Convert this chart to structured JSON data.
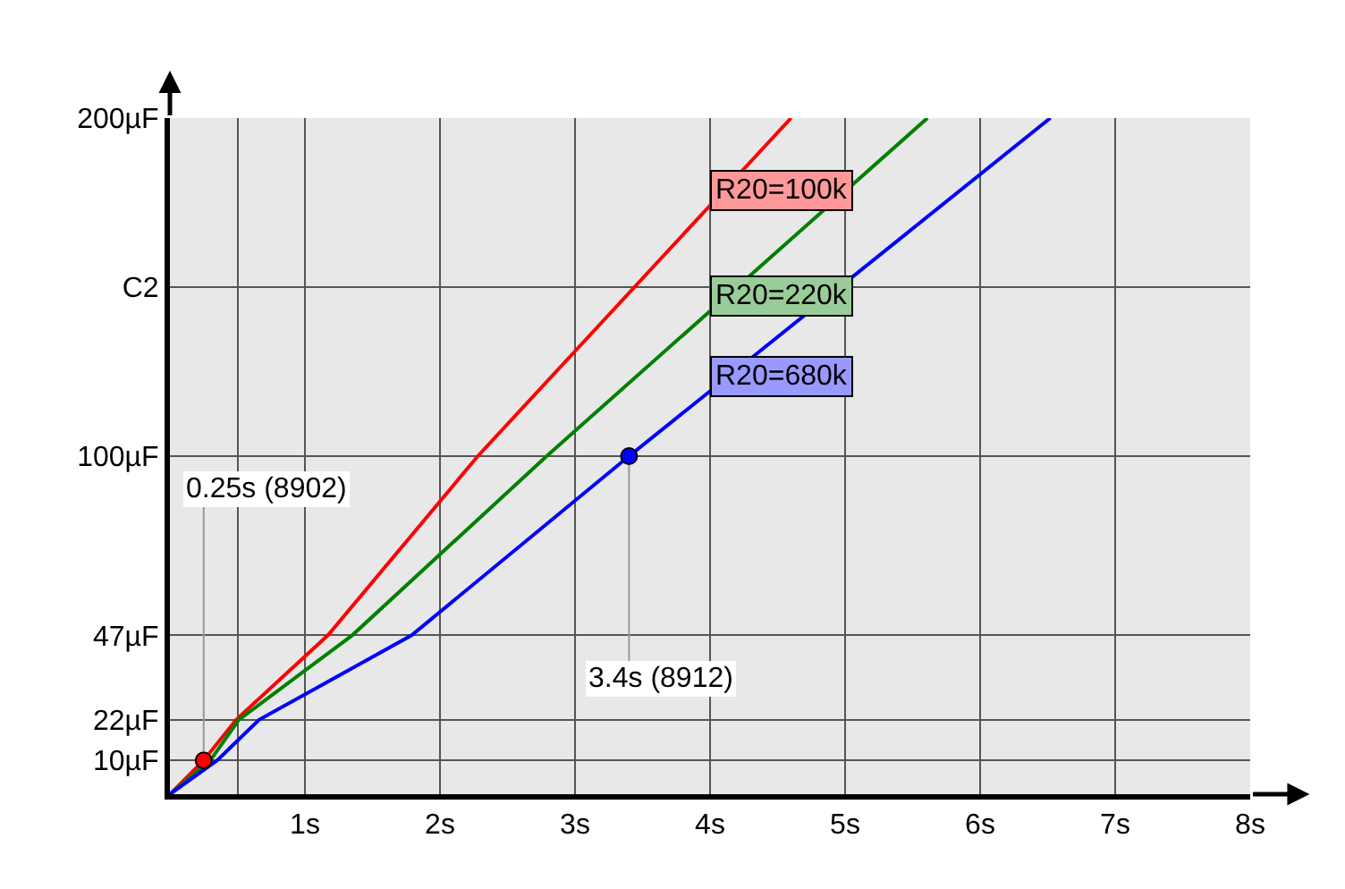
{
  "chart_data": {
    "type": "line",
    "xlim": [
      0,
      8
    ],
    "ylim": [
      0,
      200
    ],
    "xticks": [
      {
        "value": 0.5,
        "label": null
      },
      {
        "value": 1,
        "label": "1s"
      },
      {
        "value": 2,
        "label": "2s"
      },
      {
        "value": 3,
        "label": "3s"
      },
      {
        "value": 4,
        "label": "4s"
      },
      {
        "value": 5,
        "label": "5s"
      },
      {
        "value": 6,
        "label": "6s"
      },
      {
        "value": 7,
        "label": "7s"
      },
      {
        "value": 8,
        "label": "8s"
      }
    ],
    "yticks": [
      {
        "value": 10,
        "label": "10µF"
      },
      {
        "value": 22,
        "label": "22µF"
      },
      {
        "value": 47,
        "label": "47µF"
      },
      {
        "value": 100,
        "label": "100µF"
      },
      {
        "value": 150,
        "label": "C2"
      },
      {
        "value": 200,
        "label": "200µF"
      }
    ],
    "grid": true,
    "legend": false,
    "marker": "none",
    "line_style": "solid",
    "series": [
      {
        "name": "R20=100k",
        "color": "#ff0000",
        "x": [
          0,
          0.25,
          0.49,
          1.17,
          2.28,
          4.6
        ],
        "values": [
          0,
          10,
          22,
          47,
          100,
          200
        ]
      },
      {
        "name": "R20=220k",
        "color": "#008000",
        "x": [
          0,
          0.3,
          0.51,
          1.35,
          2.79,
          5.61
        ],
        "values": [
          0,
          10,
          22,
          47,
          100,
          200
        ]
      },
      {
        "name": "R20=680k",
        "color": "#0000ff",
        "x": [
          0,
          0.35,
          0.66,
          1.79,
          3.4,
          6.52
        ],
        "values": [
          0,
          10,
          22,
          47,
          100,
          200
        ]
      },
      {
        "type": "scatter",
        "marker": "circle",
        "colors": [
          "#ff0000",
          "#0000ff"
        ],
        "x": [
          0.25,
          3.4
        ],
        "values": [
          10,
          100
        ]
      }
    ],
    "annotations": [
      {
        "text": "0.25s (8902)",
        "x": 0.25,
        "y": 10
      },
      {
        "text": "3.4s (8912)",
        "x": 3.4,
        "y": 100
      }
    ]
  }
}
